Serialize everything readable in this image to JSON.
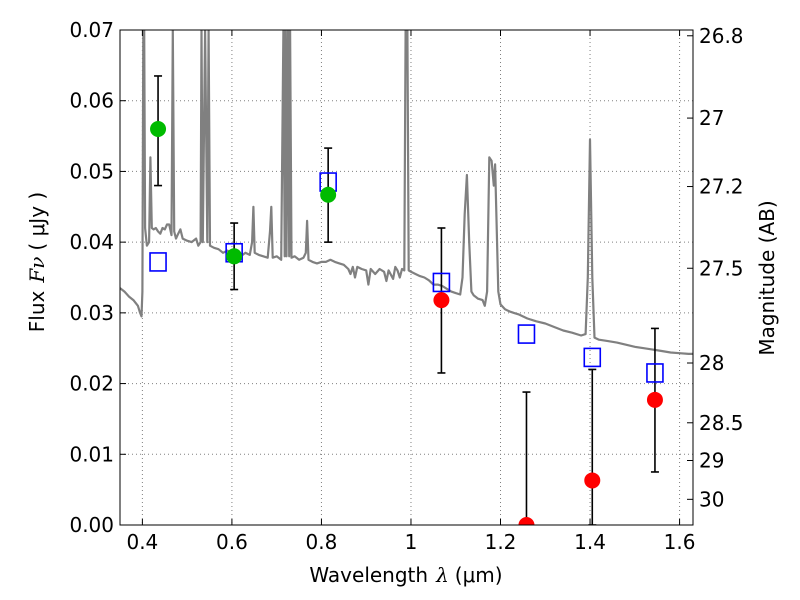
{
  "chart_data": {
    "type": "scatter",
    "xlabel_prefix": "Wavelength",
    "xlabel_symbol": "λ",
    "xlabel_unit": "(μm)",
    "ylabel_prefix": "Flux",
    "ylabel_symbol": "Fν",
    "ylabel_unit": "( μJy )",
    "y2label": "Magnitude (AB)",
    "xlim": [
      0.35,
      1.63
    ],
    "ylim": [
      0.0,
      0.07
    ],
    "grid": true,
    "x_ticks": [
      0.4,
      0.6,
      0.8,
      1.0,
      1.2,
      1.4,
      1.6
    ],
    "x_tick_labels": [
      "0.4",
      "0.6",
      "0.8",
      "1",
      "1.2",
      "1.4",
      "1.6"
    ],
    "y_ticks": [
      0.0,
      0.01,
      0.02,
      0.03,
      0.04,
      0.05,
      0.06,
      0.07
    ],
    "y_tick_labels": [
      "0.00",
      "0.01",
      "0.02",
      "0.03",
      "0.04",
      "0.05",
      "0.06",
      "0.07"
    ],
    "y2_ticks": [
      26.8,
      27,
      27.2,
      27.5,
      28,
      28.5,
      29,
      30
    ],
    "y2_tick_labels": [
      "26.8",
      "27",
      "27.2",
      "27.5",
      "28",
      "28.5",
      "29",
      "30"
    ],
    "colors": {
      "model_line": "#808080",
      "model_photometry": "#0000ff",
      "detections_green": "#00bb00",
      "detections_red": "#ff0000",
      "errorbar": "#000000",
      "grid": "#808080"
    },
    "series": [
      {
        "kind": "model_spectrum",
        "points": [
          [
            0.35,
            0.0335
          ],
          [
            0.36,
            0.033
          ],
          [
            0.37,
            0.0323
          ],
          [
            0.38,
            0.0318
          ],
          [
            0.39,
            0.031
          ],
          [
            0.395,
            0.03
          ],
          [
            0.398,
            0.0295
          ],
          [
            0.4,
            0.033
          ],
          [
            0.402,
            0.07
          ],
          [
            0.404,
            0.07
          ],
          [
            0.406,
            0.042
          ],
          [
            0.41,
            0.0395
          ],
          [
            0.415,
            0.04
          ],
          [
            0.418,
            0.052
          ],
          [
            0.421,
            0.042
          ],
          [
            0.425,
            0.0418
          ],
          [
            0.43,
            0.042
          ],
          [
            0.435,
            0.0415
          ],
          [
            0.44,
            0.0412
          ],
          [
            0.445,
            0.042
          ],
          [
            0.45,
            0.0418
          ],
          [
            0.455,
            0.0425
          ],
          [
            0.46,
            0.0425
          ],
          [
            0.465,
            0.041
          ],
          [
            0.468,
            0.07
          ],
          [
            0.471,
            0.0415
          ],
          [
            0.475,
            0.0405
          ],
          [
            0.48,
            0.0412
          ],
          [
            0.485,
            0.0418
          ],
          [
            0.49,
            0.0405
          ],
          [
            0.5,
            0.0402
          ],
          [
            0.51,
            0.04
          ],
          [
            0.52,
            0.0405
          ],
          [
            0.525,
            0.0395
          ],
          [
            0.53,
            0.04
          ],
          [
            0.532,
            0.07
          ],
          [
            0.535,
            0.04
          ],
          [
            0.54,
            0.07
          ],
          [
            0.545,
            0.04
          ],
          [
            0.548,
            0.07
          ],
          [
            0.551,
            0.0395
          ],
          [
            0.56,
            0.0392
          ],
          [
            0.57,
            0.039
          ],
          [
            0.58,
            0.0385
          ],
          [
            0.59,
            0.0388
          ],
          [
            0.6,
            0.0385
          ],
          [
            0.61,
            0.0382
          ],
          [
            0.62,
            0.038
          ],
          [
            0.63,
            0.0385
          ],
          [
            0.64,
            0.0382
          ],
          [
            0.645,
            0.04
          ],
          [
            0.648,
            0.045
          ],
          [
            0.651,
            0.0385
          ],
          [
            0.66,
            0.0382
          ],
          [
            0.67,
            0.038
          ],
          [
            0.68,
            0.0378
          ],
          [
            0.685,
            0.0415
          ],
          [
            0.688,
            0.045
          ],
          [
            0.691,
            0.0378
          ],
          [
            0.7,
            0.038
          ],
          [
            0.71,
            0.0375
          ],
          [
            0.715,
            0.07
          ],
          [
            0.718,
            0.038
          ],
          [
            0.72,
            0.07
          ],
          [
            0.722,
            0.038
          ],
          [
            0.725,
            0.07
          ],
          [
            0.728,
            0.038
          ],
          [
            0.73,
            0.07
          ],
          [
            0.733,
            0.0378
          ],
          [
            0.74,
            0.038
          ],
          [
            0.75,
            0.0375
          ],
          [
            0.76,
            0.0378
          ],
          [
            0.765,
            0.0385
          ],
          [
            0.768,
            0.043
          ],
          [
            0.771,
            0.0375
          ],
          [
            0.78,
            0.0372
          ],
          [
            0.79,
            0.037
          ],
          [
            0.8,
            0.0372
          ],
          [
            0.81,
            0.0372
          ],
          [
            0.82,
            0.0375
          ],
          [
            0.83,
            0.0372
          ],
          [
            0.84,
            0.037
          ],
          [
            0.85,
            0.0368
          ],
          [
            0.86,
            0.0362
          ],
          [
            0.865,
            0.0355
          ],
          [
            0.87,
            0.0365
          ],
          [
            0.875,
            0.035
          ],
          [
            0.88,
            0.0365
          ],
          [
            0.89,
            0.0362
          ],
          [
            0.9,
            0.036
          ],
          [
            0.905,
            0.034
          ],
          [
            0.91,
            0.0362
          ],
          [
            0.92,
            0.0355
          ],
          [
            0.93,
            0.0362
          ],
          [
            0.94,
            0.0358
          ],
          [
            0.945,
            0.0345
          ],
          [
            0.95,
            0.036
          ],
          [
            0.96,
            0.0348
          ],
          [
            0.965,
            0.0365
          ],
          [
            0.97,
            0.036
          ],
          [
            0.975,
            0.035
          ],
          [
            0.98,
            0.0362
          ],
          [
            0.985,
            0.036
          ],
          [
            0.988,
            0.07
          ],
          [
            0.992,
            0.07
          ],
          [
            0.995,
            0.036
          ],
          [
            1.0,
            0.0358
          ],
          [
            1.01,
            0.0355
          ],
          [
            1.02,
            0.0352
          ],
          [
            1.03,
            0.035
          ],
          [
            1.04,
            0.0346
          ],
          [
            1.05,
            0.034
          ],
          [
            1.06,
            0.034
          ],
          [
            1.07,
            0.0338
          ],
          [
            1.08,
            0.0334
          ],
          [
            1.09,
            0.033
          ],
          [
            1.1,
            0.0328
          ],
          [
            1.11,
            0.0326
          ],
          [
            1.115,
            0.035
          ],
          [
            1.12,
            0.044
          ],
          [
            1.125,
            0.0495
          ],
          [
            1.13,
            0.04
          ],
          [
            1.135,
            0.033
          ],
          [
            1.14,
            0.0325
          ],
          [
            1.15,
            0.032
          ],
          [
            1.16,
            0.0318
          ],
          [
            1.165,
            0.031
          ],
          [
            1.17,
            0.033
          ],
          [
            1.175,
            0.052
          ],
          [
            1.18,
            0.0515
          ],
          [
            1.185,
            0.048
          ],
          [
            1.188,
            0.051
          ],
          [
            1.19,
            0.046
          ],
          [
            1.195,
            0.033
          ],
          [
            1.2,
            0.0312
          ],
          [
            1.21,
            0.0305
          ],
          [
            1.22,
            0.0302
          ],
          [
            1.23,
            0.03
          ],
          [
            1.24,
            0.0298
          ],
          [
            1.25,
            0.0295
          ],
          [
            1.26,
            0.0292
          ],
          [
            1.28,
            0.0288
          ],
          [
            1.3,
            0.0285
          ],
          [
            1.32,
            0.028
          ],
          [
            1.34,
            0.0275
          ],
          [
            1.36,
            0.0272
          ],
          [
            1.38,
            0.0268
          ],
          [
            1.39,
            0.027
          ],
          [
            1.395,
            0.035
          ],
          [
            1.4,
            0.0545
          ],
          [
            1.405,
            0.035
          ],
          [
            1.41,
            0.0265
          ],
          [
            1.42,
            0.0262
          ],
          [
            1.44,
            0.026
          ],
          [
            1.46,
            0.0258
          ],
          [
            1.48,
            0.0255
          ],
          [
            1.5,
            0.0252
          ],
          [
            1.52,
            0.025
          ],
          [
            1.54,
            0.0248
          ],
          [
            1.56,
            0.0246
          ],
          [
            1.58,
            0.0244
          ],
          [
            1.6,
            0.0243
          ],
          [
            1.62,
            0.0242
          ],
          [
            1.63,
            0.0242
          ]
        ]
      },
      {
        "kind": "model_photometry",
        "points": [
          {
            "x": 0.435,
            "y": 0.0372
          },
          {
            "x": 0.605,
            "y": 0.0385
          },
          {
            "x": 0.815,
            "y": 0.0485
          },
          {
            "x": 1.068,
            "y": 0.0343
          },
          {
            "x": 1.258,
            "y": 0.027
          },
          {
            "x": 1.405,
            "y": 0.0237
          },
          {
            "x": 1.545,
            "y": 0.0215
          }
        ]
      },
      {
        "kind": "detections_green",
        "points": [
          {
            "x": 0.435,
            "y": 0.056,
            "yerr_low": 0.048,
            "yerr_high": 0.0635
          },
          {
            "x": 0.605,
            "y": 0.038,
            "yerr_low": 0.0333,
            "yerr_high": 0.0427
          },
          {
            "x": 0.815,
            "y": 0.0467,
            "yerr_low": 0.04,
            "yerr_high": 0.0533
          }
        ]
      },
      {
        "kind": "detections_red",
        "points": [
          {
            "x": 1.068,
            "y": 0.0318,
            "yerr_low": 0.0215,
            "yerr_high": 0.042
          },
          {
            "x": 1.258,
            "y": 0.0,
            "yerr_low": 0.0,
            "yerr_high": 0.0188
          },
          {
            "x": 1.405,
            "y": 0.0063,
            "yerr_low": 0.0,
            "yerr_high": 0.022
          },
          {
            "x": 1.545,
            "y": 0.0177,
            "yerr_low": 0.0075,
            "yerr_high": 0.0278
          }
        ]
      }
    ]
  }
}
